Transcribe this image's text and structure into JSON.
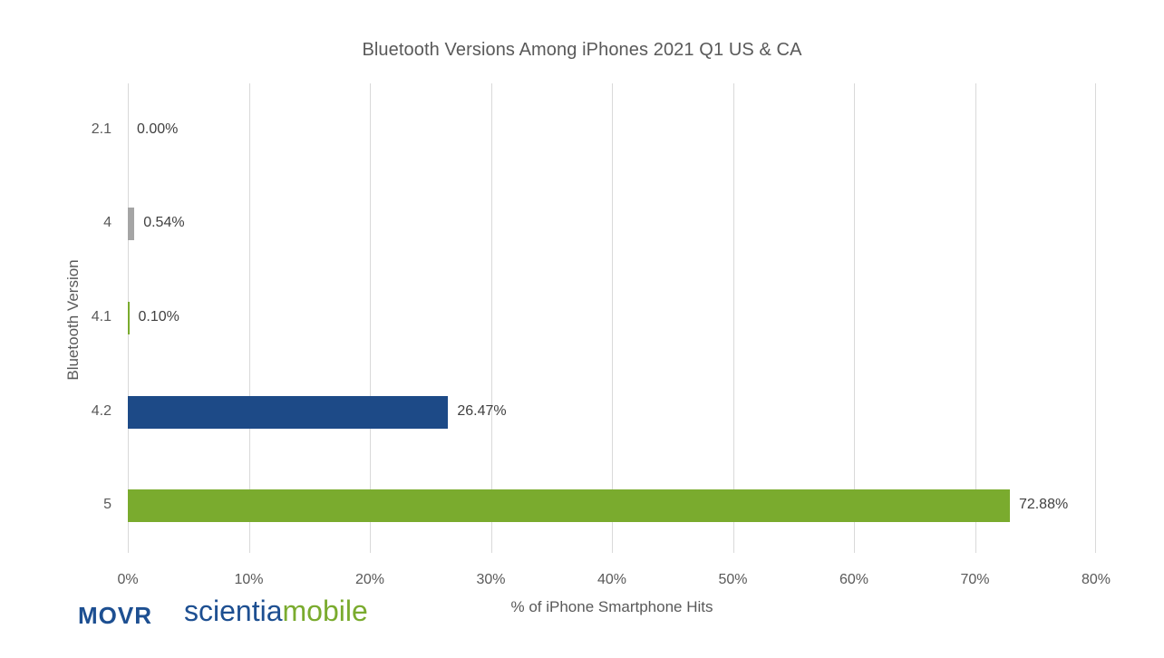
{
  "chart_data": {
    "type": "bar",
    "orientation": "horizontal",
    "title": "Bluetooth Versions Among iPhones 2021 Q1 US & CA",
    "xlabel": "% of iPhone Smartphone Hits",
    "ylabel": "Bluetooth Version",
    "categories": [
      "2.1",
      "4",
      "4.1",
      "4.2",
      "5"
    ],
    "values": [
      0.0,
      0.54,
      0.1,
      26.47,
      72.88
    ],
    "value_labels": [
      "0.00%",
      "0.54%",
      "0.10%",
      "26.47%",
      "72.88%"
    ],
    "bar_colors": [
      "#7aab2e",
      "#a5a5a5",
      "#7aab2e",
      "#1d4a87",
      "#7aab2e"
    ],
    "xlim": [
      0,
      80
    ],
    "xticks": [
      "0%",
      "10%",
      "20%",
      "30%",
      "40%",
      "50%",
      "60%",
      "70%",
      "80%"
    ],
    "grid": "vertical",
    "legend": "none"
  },
  "branding": {
    "movr": "MOVR",
    "scientia_part1": "scientia",
    "scientia_part2": "mobile",
    "blue": "#1d4f91",
    "green": "#7aab2e"
  }
}
